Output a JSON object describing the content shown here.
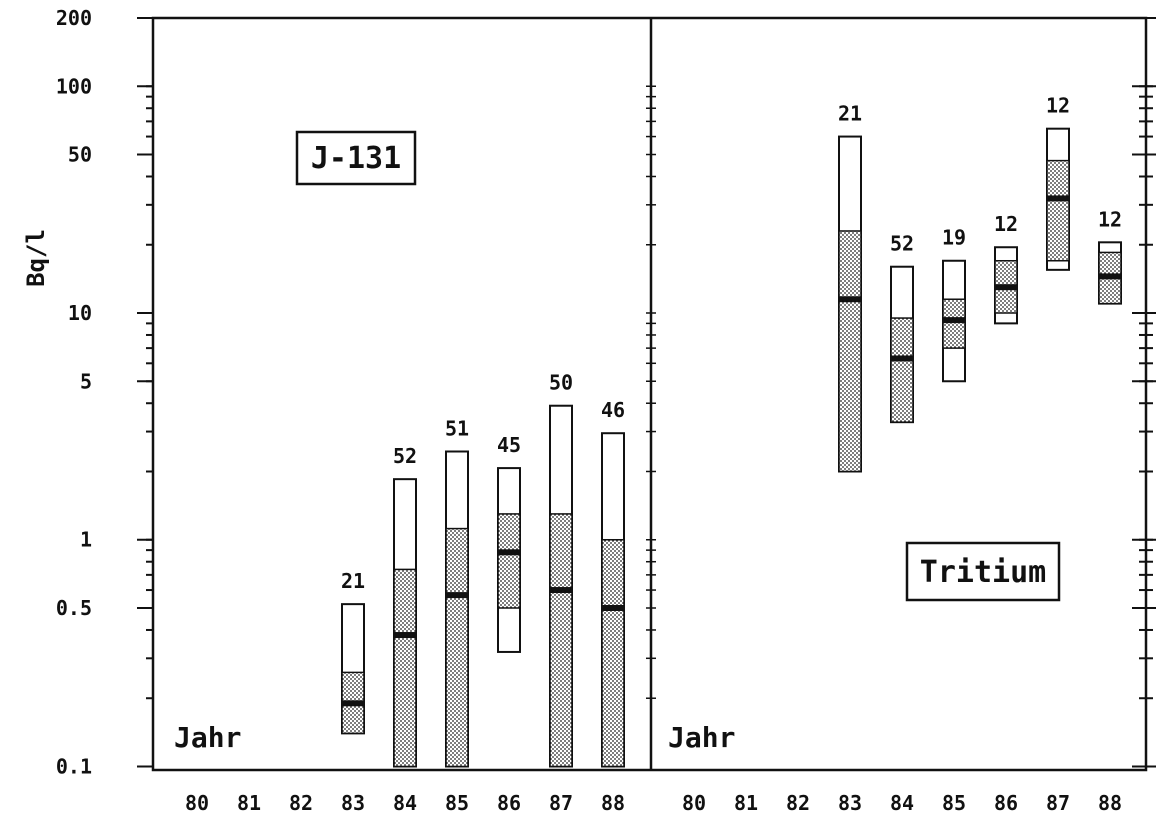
{
  "chart_data": [
    {
      "type": "range-bar",
      "panel": "left",
      "label": "J-131",
      "corner_label": "Jahr",
      "ylabel": "Bq/l",
      "yscale": "log",
      "ylim": [
        0.1,
        200
      ],
      "yticks": [
        "200",
        "100",
        "50",
        "10",
        "5",
        "1",
        "0.5",
        "0.1"
      ],
      "categories": [
        "80",
        "81",
        "82",
        "83",
        "84",
        "85",
        "86",
        "87",
        "88"
      ],
      "bars": [
        {
          "year": "83",
          "count": "21",
          "min": 0.14,
          "q_low": 0.14,
          "q_high": 0.26,
          "median": 0.19,
          "max": 0.52
        },
        {
          "year": "84",
          "count": "52",
          "min": 0.1,
          "q_low": 0.1,
          "q_high": 0.74,
          "median": 0.38,
          "max": 1.85
        },
        {
          "year": "85",
          "count": "51",
          "min": 0.1,
          "q_low": 0.1,
          "q_high": 1.12,
          "median": 0.57,
          "max": 2.45
        },
        {
          "year": "86",
          "count": "45",
          "min": 0.32,
          "q_low": 0.5,
          "q_high": 1.3,
          "median": 0.88,
          "max": 2.07
        },
        {
          "year": "87",
          "count": "50",
          "min": 0.1,
          "q_low": 0.1,
          "q_high": 1.3,
          "median": 0.6,
          "max": 3.9
        },
        {
          "year": "88",
          "count": "46",
          "min": 0.1,
          "q_low": 0.1,
          "q_high": 1.0,
          "median": 0.5,
          "max": 2.95
        }
      ]
    },
    {
      "type": "range-bar",
      "panel": "right",
      "label": "Tritium",
      "corner_label": "Jahr",
      "yscale": "log",
      "ylim": [
        0.1,
        200
      ],
      "categories": [
        "80",
        "81",
        "82",
        "83",
        "84",
        "85",
        "86",
        "87",
        "88"
      ],
      "bars": [
        {
          "year": "83",
          "count": "21",
          "min": 2.0,
          "q_low": 2.0,
          "q_high": 23.0,
          "median": 11.5,
          "max": 60.0
        },
        {
          "year": "84",
          "count": "52",
          "min": 3.3,
          "q_low": 3.3,
          "q_high": 9.5,
          "median": 6.3,
          "max": 16.0
        },
        {
          "year": "85",
          "count": "19",
          "min": 5.0,
          "q_low": 7.0,
          "q_high": 11.5,
          "median": 9.3,
          "max": 17.0
        },
        {
          "year": "86",
          "count": "12",
          "min": 9.0,
          "q_low": 10.0,
          "q_high": 17.0,
          "median": 13.0,
          "max": 19.5
        },
        {
          "year": "87",
          "count": "12",
          "min": 15.5,
          "q_low": 17.0,
          "q_high": 47.0,
          "median": 32.0,
          "max": 65.0
        },
        {
          "year": "88",
          "count": "12",
          "min": 11.0,
          "q_low": 11.0,
          "q_high": 18.5,
          "median": 14.5,
          "max": 20.5
        }
      ]
    }
  ]
}
